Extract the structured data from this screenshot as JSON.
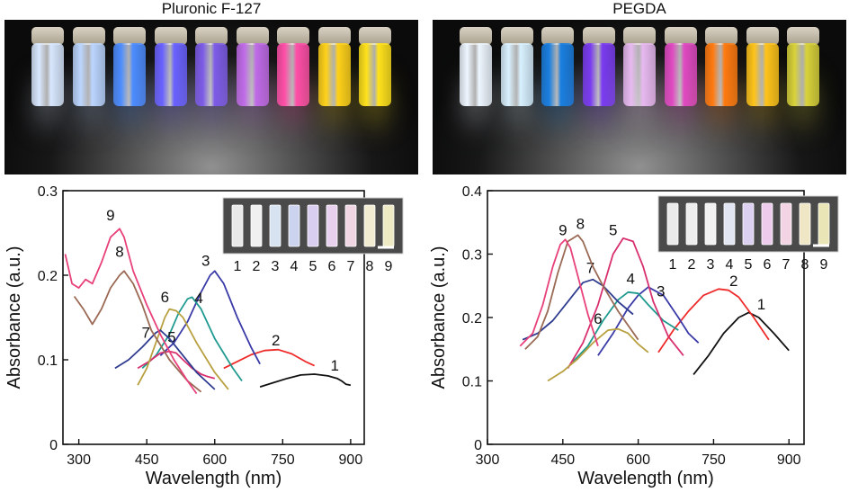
{
  "panels": [
    {
      "title": "Pluronic F-127",
      "vial_colors": [
        "#d9e8ff",
        "#bcd6ff",
        "#4d8dff",
        "#6a62ff",
        "#7d5ce8",
        "#c06be8",
        "#ff4fa8",
        "#ffd21a",
        "#ffe21c"
      ],
      "inset": {
        "labels": [
          "1",
          "2",
          "3",
          "4",
          "5",
          "6",
          "7",
          "8",
          "9"
        ],
        "colors": [
          "#e9e9e9",
          "#f0f0f0",
          "#d7e3f0",
          "#ccd3ee",
          "#d9cdf0",
          "#e7cfee",
          "#f0d6e3",
          "#f2ecd2",
          "#eeeac4"
        ]
      }
    },
    {
      "title": "PEGDA",
      "vial_colors": [
        "#eef6ff",
        "#d9f1ff",
        "#1a7fe0",
        "#7a3cf0",
        "#e7b9f0",
        "#e04ac2",
        "#ff7a10",
        "#ffc41a",
        "#d8d23a"
      ],
      "inset": {
        "labels": [
          "1",
          "2",
          "3",
          "4",
          "5",
          "6",
          "7",
          "8",
          "9"
        ],
        "colors": [
          "#eaeaea",
          "#ededed",
          "#f1f1f1",
          "#e2e6f3",
          "#dcd0f1",
          "#eccbed",
          "#f3d4e4",
          "#efe6c5",
          "#e9e5b6"
        ]
      }
    }
  ],
  "chart_data": [
    {
      "type": "line",
      "title": "",
      "xlabel": "Wavelength (nm)",
      "ylabel": "Absorbance (a.u.)",
      "xlim": [
        265,
        930
      ],
      "ylim": [
        0,
        0.3
      ],
      "xticks": [
        "300",
        "450",
        "600",
        "750",
        "900"
      ],
      "xtick_values": [
        300,
        450,
        600,
        750,
        900
      ],
      "yticks": [
        "0",
        "0.1",
        "0.2",
        "0.3"
      ],
      "ytick_values": [
        0,
        0.1,
        0.2,
        0.3
      ],
      "series": [
        {
          "name": "1",
          "color": "#111111",
          "label_at": [
            865,
            0.087
          ],
          "x": [
            700,
            730,
            760,
            790,
            820,
            850,
            870,
            880,
            890,
            900
          ],
          "y": [
            0.068,
            0.073,
            0.078,
            0.082,
            0.083,
            0.081,
            0.078,
            0.075,
            0.071,
            0.07
          ]
        },
        {
          "name": "2",
          "color": "#ee2a2a",
          "label_at": [
            735,
            0.117
          ],
          "x": [
            620,
            650,
            680,
            710,
            740,
            770,
            800,
            820
          ],
          "y": [
            0.09,
            0.098,
            0.106,
            0.111,
            0.112,
            0.107,
            0.098,
            0.093
          ]
        },
        {
          "name": "3",
          "color": "#3a3aa8",
          "label_at": [
            580,
            0.211
          ],
          "x": [
            480,
            510,
            540,
            570,
            590,
            600,
            620,
            650,
            680,
            700
          ],
          "y": [
            0.105,
            0.12,
            0.145,
            0.18,
            0.2,
            0.205,
            0.19,
            0.15,
            0.115,
            0.095
          ]
        },
        {
          "name": "4",
          "color": "#1f9a8f",
          "label_at": [
            565,
            0.167
          ],
          "x": [
            440,
            470,
            500,
            520,
            540,
            550,
            570,
            600,
            640,
            660
          ],
          "y": [
            0.09,
            0.105,
            0.13,
            0.155,
            0.172,
            0.174,
            0.16,
            0.125,
            0.09,
            0.075
          ]
        },
        {
          "name": "5",
          "color": "#d8306f",
          "label_at": [
            505,
            0.121
          ],
          "x": [
            430,
            455,
            480,
            500,
            515,
            530,
            550,
            570,
            585,
            600
          ],
          "y": [
            0.09,
            0.098,
            0.108,
            0.11,
            0.108,
            0.1,
            0.09,
            0.083,
            0.08,
            0.078
          ]
        },
        {
          "name": "6",
          "color": "#b8a040",
          "label_at": [
            490,
            0.168
          ],
          "x": [
            430,
            450,
            470,
            490,
            500,
            515,
            530,
            560,
            600,
            630
          ],
          "y": [
            0.07,
            0.09,
            0.12,
            0.15,
            0.16,
            0.158,
            0.15,
            0.12,
            0.085,
            0.065
          ]
        },
        {
          "name": "7",
          "color": "#2e3b8f",
          "label_at": [
            448,
            0.126
          ],
          "x": [
            380,
            410,
            440,
            470,
            480,
            500,
            530,
            560,
            600
          ],
          "y": [
            0.09,
            0.1,
            0.115,
            0.132,
            0.135,
            0.125,
            0.105,
            0.085,
            0.065
          ]
        },
        {
          "name": "8",
          "color": "#9a6a55",
          "label_at": [
            390,
            0.222
          ],
          "x": [
            290,
            310,
            330,
            350,
            370,
            390,
            400,
            420,
            440,
            460,
            500,
            540,
            570
          ],
          "y": [
            0.175,
            0.16,
            0.142,
            0.16,
            0.185,
            0.2,
            0.205,
            0.19,
            0.165,
            0.135,
            0.1,
            0.075,
            0.062
          ]
        },
        {
          "name": "9",
          "color": "#e8407a",
          "label_at": [
            370,
            0.265
          ],
          "x": [
            270,
            285,
            300,
            315,
            330,
            350,
            370,
            390,
            400,
            420,
            450,
            480,
            510,
            540,
            560
          ],
          "y": [
            0.225,
            0.19,
            0.185,
            0.195,
            0.19,
            0.215,
            0.245,
            0.255,
            0.245,
            0.205,
            0.165,
            0.13,
            0.1,
            0.075,
            0.06
          ]
        }
      ]
    },
    {
      "type": "line",
      "title": "",
      "xlabel": "Wavelength (nm)",
      "ylabel": "Absorbance (a.u.)",
      "xlim": [
        300,
        930
      ],
      "ylim": [
        0,
        0.4
      ],
      "xticks": [
        "300",
        "450",
        "600",
        "750",
        "900"
      ],
      "xtick_values": [
        300,
        450,
        600,
        750,
        900
      ],
      "yticks": [
        "0",
        "0.1",
        "0.2",
        "0.3",
        "0.4"
      ],
      "ytick_values": [
        0,
        0.1,
        0.2,
        0.3,
        0.4
      ],
      "series": [
        {
          "name": "1",
          "color": "#111111",
          "label_at": [
            845,
            0.213
          ],
          "x": [
            710,
            740,
            770,
            800,
            820,
            840,
            870,
            900
          ],
          "y": [
            0.11,
            0.14,
            0.175,
            0.2,
            0.208,
            0.2,
            0.175,
            0.148
          ]
        },
        {
          "name": "2",
          "color": "#ee2a2a",
          "label_at": [
            790,
            0.25
          ],
          "x": [
            640,
            670,
            700,
            730,
            760,
            780,
            800,
            830,
            860
          ],
          "y": [
            0.145,
            0.18,
            0.21,
            0.235,
            0.245,
            0.243,
            0.232,
            0.2,
            0.165
          ]
        },
        {
          "name": "3",
          "color": "#3a3aa8",
          "label_at": [
            645,
            0.233
          ],
          "x": [
            520,
            550,
            580,
            600,
            620,
            650,
            680,
            700,
            720
          ],
          "y": [
            0.14,
            0.175,
            0.215,
            0.235,
            0.248,
            0.235,
            0.2,
            0.175,
            0.16
          ]
        },
        {
          "name": "4",
          "color": "#1f9a8f",
          "label_at": [
            585,
            0.253
          ],
          "x": [
            470,
            500,
            530,
            560,
            580,
            600,
            620,
            650,
            680
          ],
          "y": [
            0.13,
            0.155,
            0.195,
            0.228,
            0.24,
            0.238,
            0.22,
            0.195,
            0.18
          ]
        },
        {
          "name": "5",
          "color": "#d8306f",
          "label_at": [
            550,
            0.33
          ],
          "x": [
            460,
            490,
            520,
            550,
            570,
            590,
            610,
            630,
            660,
            690
          ],
          "y": [
            0.12,
            0.16,
            0.22,
            0.3,
            0.325,
            0.32,
            0.28,
            0.225,
            0.17,
            0.14
          ]
        },
        {
          "name": "6",
          "color": "#b8a040",
          "label_at": [
            520,
            0.19
          ],
          "x": [
            420,
            450,
            480,
            510,
            540,
            560,
            580,
            600,
            620
          ],
          "y": [
            0.1,
            0.115,
            0.135,
            0.16,
            0.18,
            0.182,
            0.175,
            0.158,
            0.145
          ]
        },
        {
          "name": "7",
          "color": "#2e3b8f",
          "label_at": [
            505,
            0.27
          ],
          "x": [
            370,
            400,
            430,
            460,
            490,
            510,
            530,
            560,
            590
          ],
          "y": [
            0.165,
            0.175,
            0.195,
            0.225,
            0.255,
            0.26,
            0.25,
            0.225,
            0.205
          ]
        },
        {
          "name": "8",
          "color": "#9a6a55",
          "label_at": [
            485,
            0.34
          ],
          "x": [
            375,
            400,
            420,
            440,
            460,
            480,
            490,
            510,
            530,
            560,
            600
          ],
          "y": [
            0.15,
            0.17,
            0.21,
            0.27,
            0.32,
            0.33,
            0.32,
            0.28,
            0.25,
            0.21,
            0.165
          ]
        },
        {
          "name": "9",
          "color": "#e8407a",
          "label_at": [
            450,
            0.33
          ],
          "x": [
            365,
            390,
            410,
            430,
            445,
            455,
            465,
            480,
            500,
            520
          ],
          "y": [
            0.155,
            0.175,
            0.22,
            0.28,
            0.315,
            0.323,
            0.31,
            0.265,
            0.205,
            0.155
          ]
        }
      ]
    }
  ]
}
